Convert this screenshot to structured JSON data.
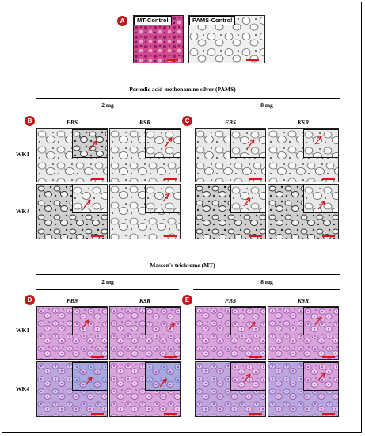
{
  "panel_letters": {
    "a": "A",
    "b": "B",
    "c": "C",
    "d": "D",
    "e": "E"
  },
  "top_labels": {
    "mt_control": "MT-Control",
    "pams_control": "PAMS-Control"
  },
  "pams_section": {
    "title": "Periodic acid-methenamine silver (PAMS)",
    "groups": [
      "2 mg",
      "8 mg"
    ],
    "columns": [
      "FBS",
      "KSR",
      "FBS",
      "KSR"
    ],
    "rows": [
      "WK1",
      "WK4"
    ]
  },
  "mt_section": {
    "title": "Masson's trichrome (MT)",
    "groups": [
      "2 mg",
      "8 mg"
    ],
    "columns": [
      "FBS",
      "KSR",
      "FBS",
      "KSR"
    ],
    "rows": [
      "WK1",
      "WK4"
    ]
  },
  "colors": {
    "badge": "#c0171b",
    "scalebar": "#e0121a",
    "arrow": "#d0141a",
    "mt_pink": "#c47ac8",
    "mt_blue": "#6e8fd2",
    "pams_gray": "#bdbdbd"
  }
}
